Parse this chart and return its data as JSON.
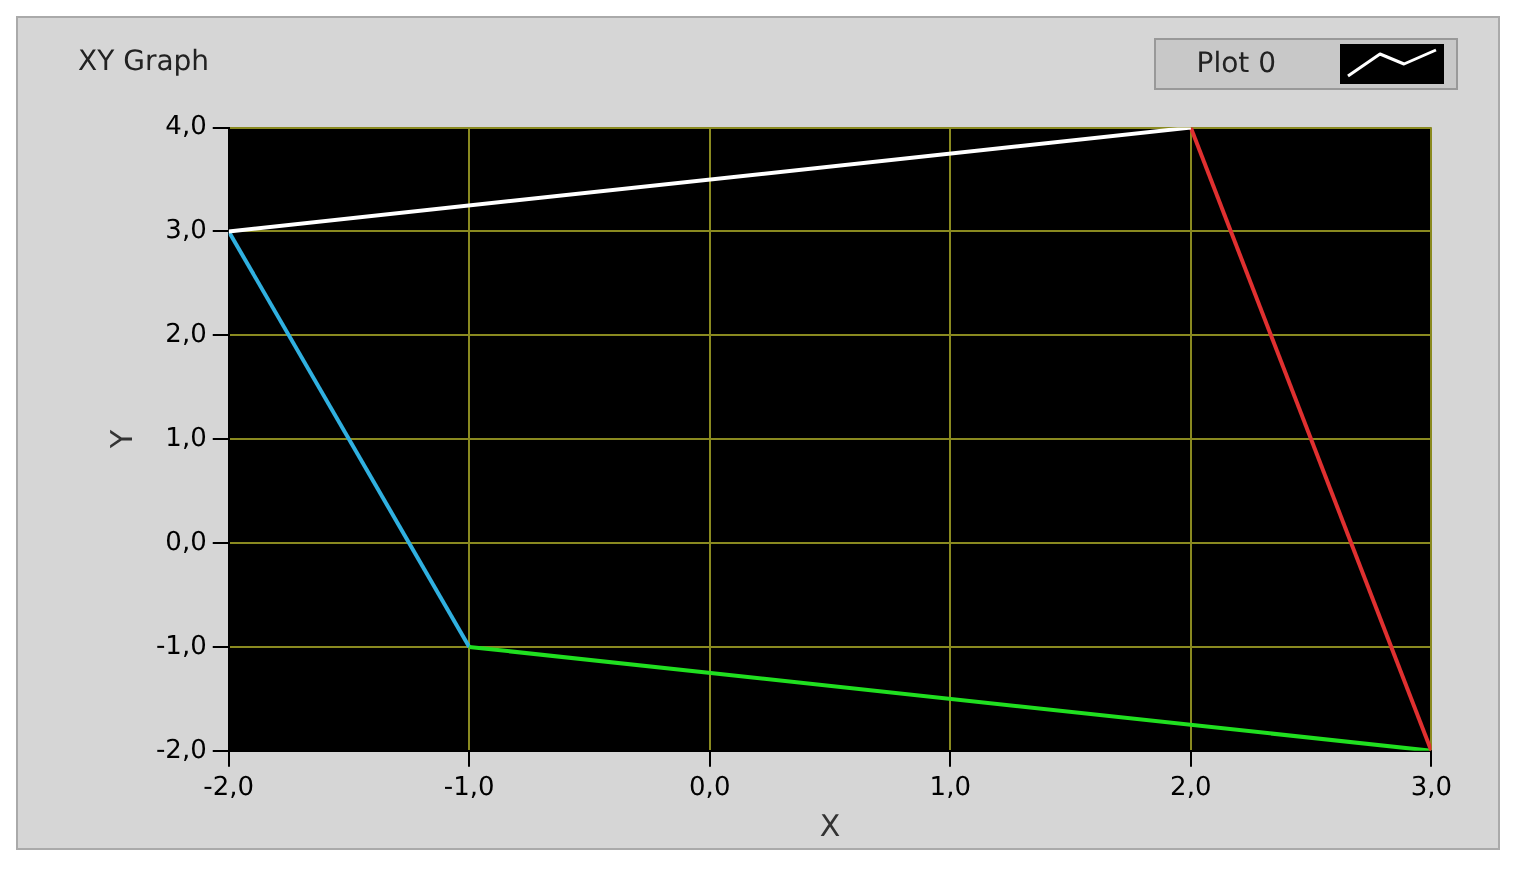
{
  "chart_data": {
    "type": "line",
    "title": "XY Graph",
    "xlabel": "X",
    "ylabel": "Y",
    "xlim": [
      -2,
      3
    ],
    "ylim": [
      -2,
      4
    ],
    "xticks": [
      {
        "value": -2,
        "label": "-2,0"
      },
      {
        "value": -1,
        "label": "-1,0"
      },
      {
        "value": 0,
        "label": "0,0"
      },
      {
        "value": 1,
        "label": "1,0"
      },
      {
        "value": 2,
        "label": "2,0"
      },
      {
        "value": 3,
        "label": "3,0"
      }
    ],
    "yticks": [
      {
        "value": -2,
        "label": "-2,0"
      },
      {
        "value": -1,
        "label": "-1,0"
      },
      {
        "value": 0,
        "label": "0,0"
      },
      {
        "value": 1,
        "label": "1,0"
      },
      {
        "value": 2,
        "label": "2,0"
      },
      {
        "value": 3,
        "label": "3,0"
      },
      {
        "value": 4,
        "label": "4,0"
      }
    ],
    "grid": true,
    "legend": "top right",
    "marker": "none",
    "line_style": "solid",
    "series": [
      {
        "name": "Plot 0",
        "color": "#ffffff",
        "x": [
          -2,
          2
        ],
        "values": [
          3,
          4
        ]
      },
      {
        "color": "#e03030",
        "x": [
          2,
          3
        ],
        "values": [
          4,
          -2
        ]
      },
      {
        "color": "#20e020",
        "x": [
          3,
          -1
        ],
        "values": [
          -2,
          -1
        ]
      },
      {
        "color": "#30b0e0",
        "x": [
          -1,
          -2
        ],
        "values": [
          -1,
          3
        ]
      }
    ]
  }
}
